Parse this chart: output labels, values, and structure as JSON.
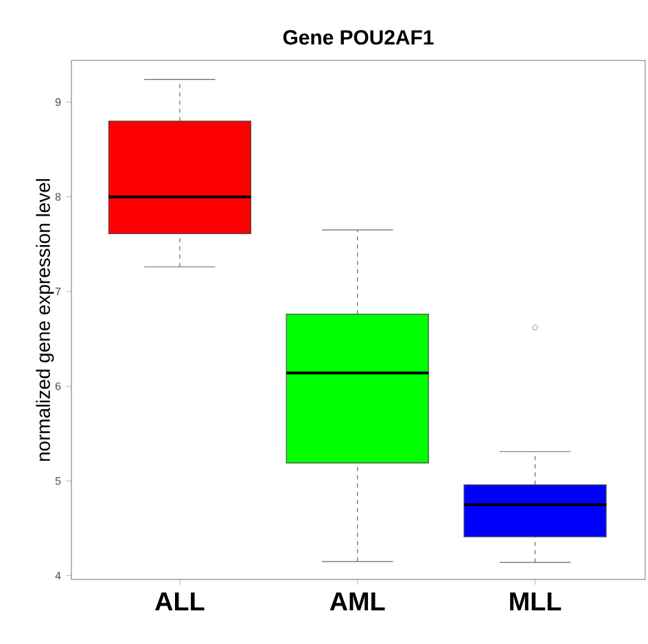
{
  "chart_data": {
    "type": "box",
    "title": "Gene POU2AF1",
    "ylabel": "normalized gene expression level",
    "categories": [
      "ALL",
      "AML",
      "MLL"
    ],
    "colors": [
      "#ff0000",
      "#00ff00",
      "#0000ff"
    ],
    "boxes": [
      {
        "low": 7.26,
        "q1": 7.61,
        "median": 8.0,
        "q3": 8.8,
        "high": 9.24
      },
      {
        "low": 4.15,
        "q1": 5.19,
        "median": 6.14,
        "q3": 6.76,
        "high": 7.65
      },
      {
        "low": 4.14,
        "q1": 4.41,
        "median": 4.75,
        "q3": 4.96,
        "high": 5.31,
        "outliers": [
          6.62
        ]
      }
    ],
    "ylim": [
      3.96,
      9.44
    ],
    "yticks": [
      4,
      5,
      6,
      7,
      8,
      9
    ]
  }
}
